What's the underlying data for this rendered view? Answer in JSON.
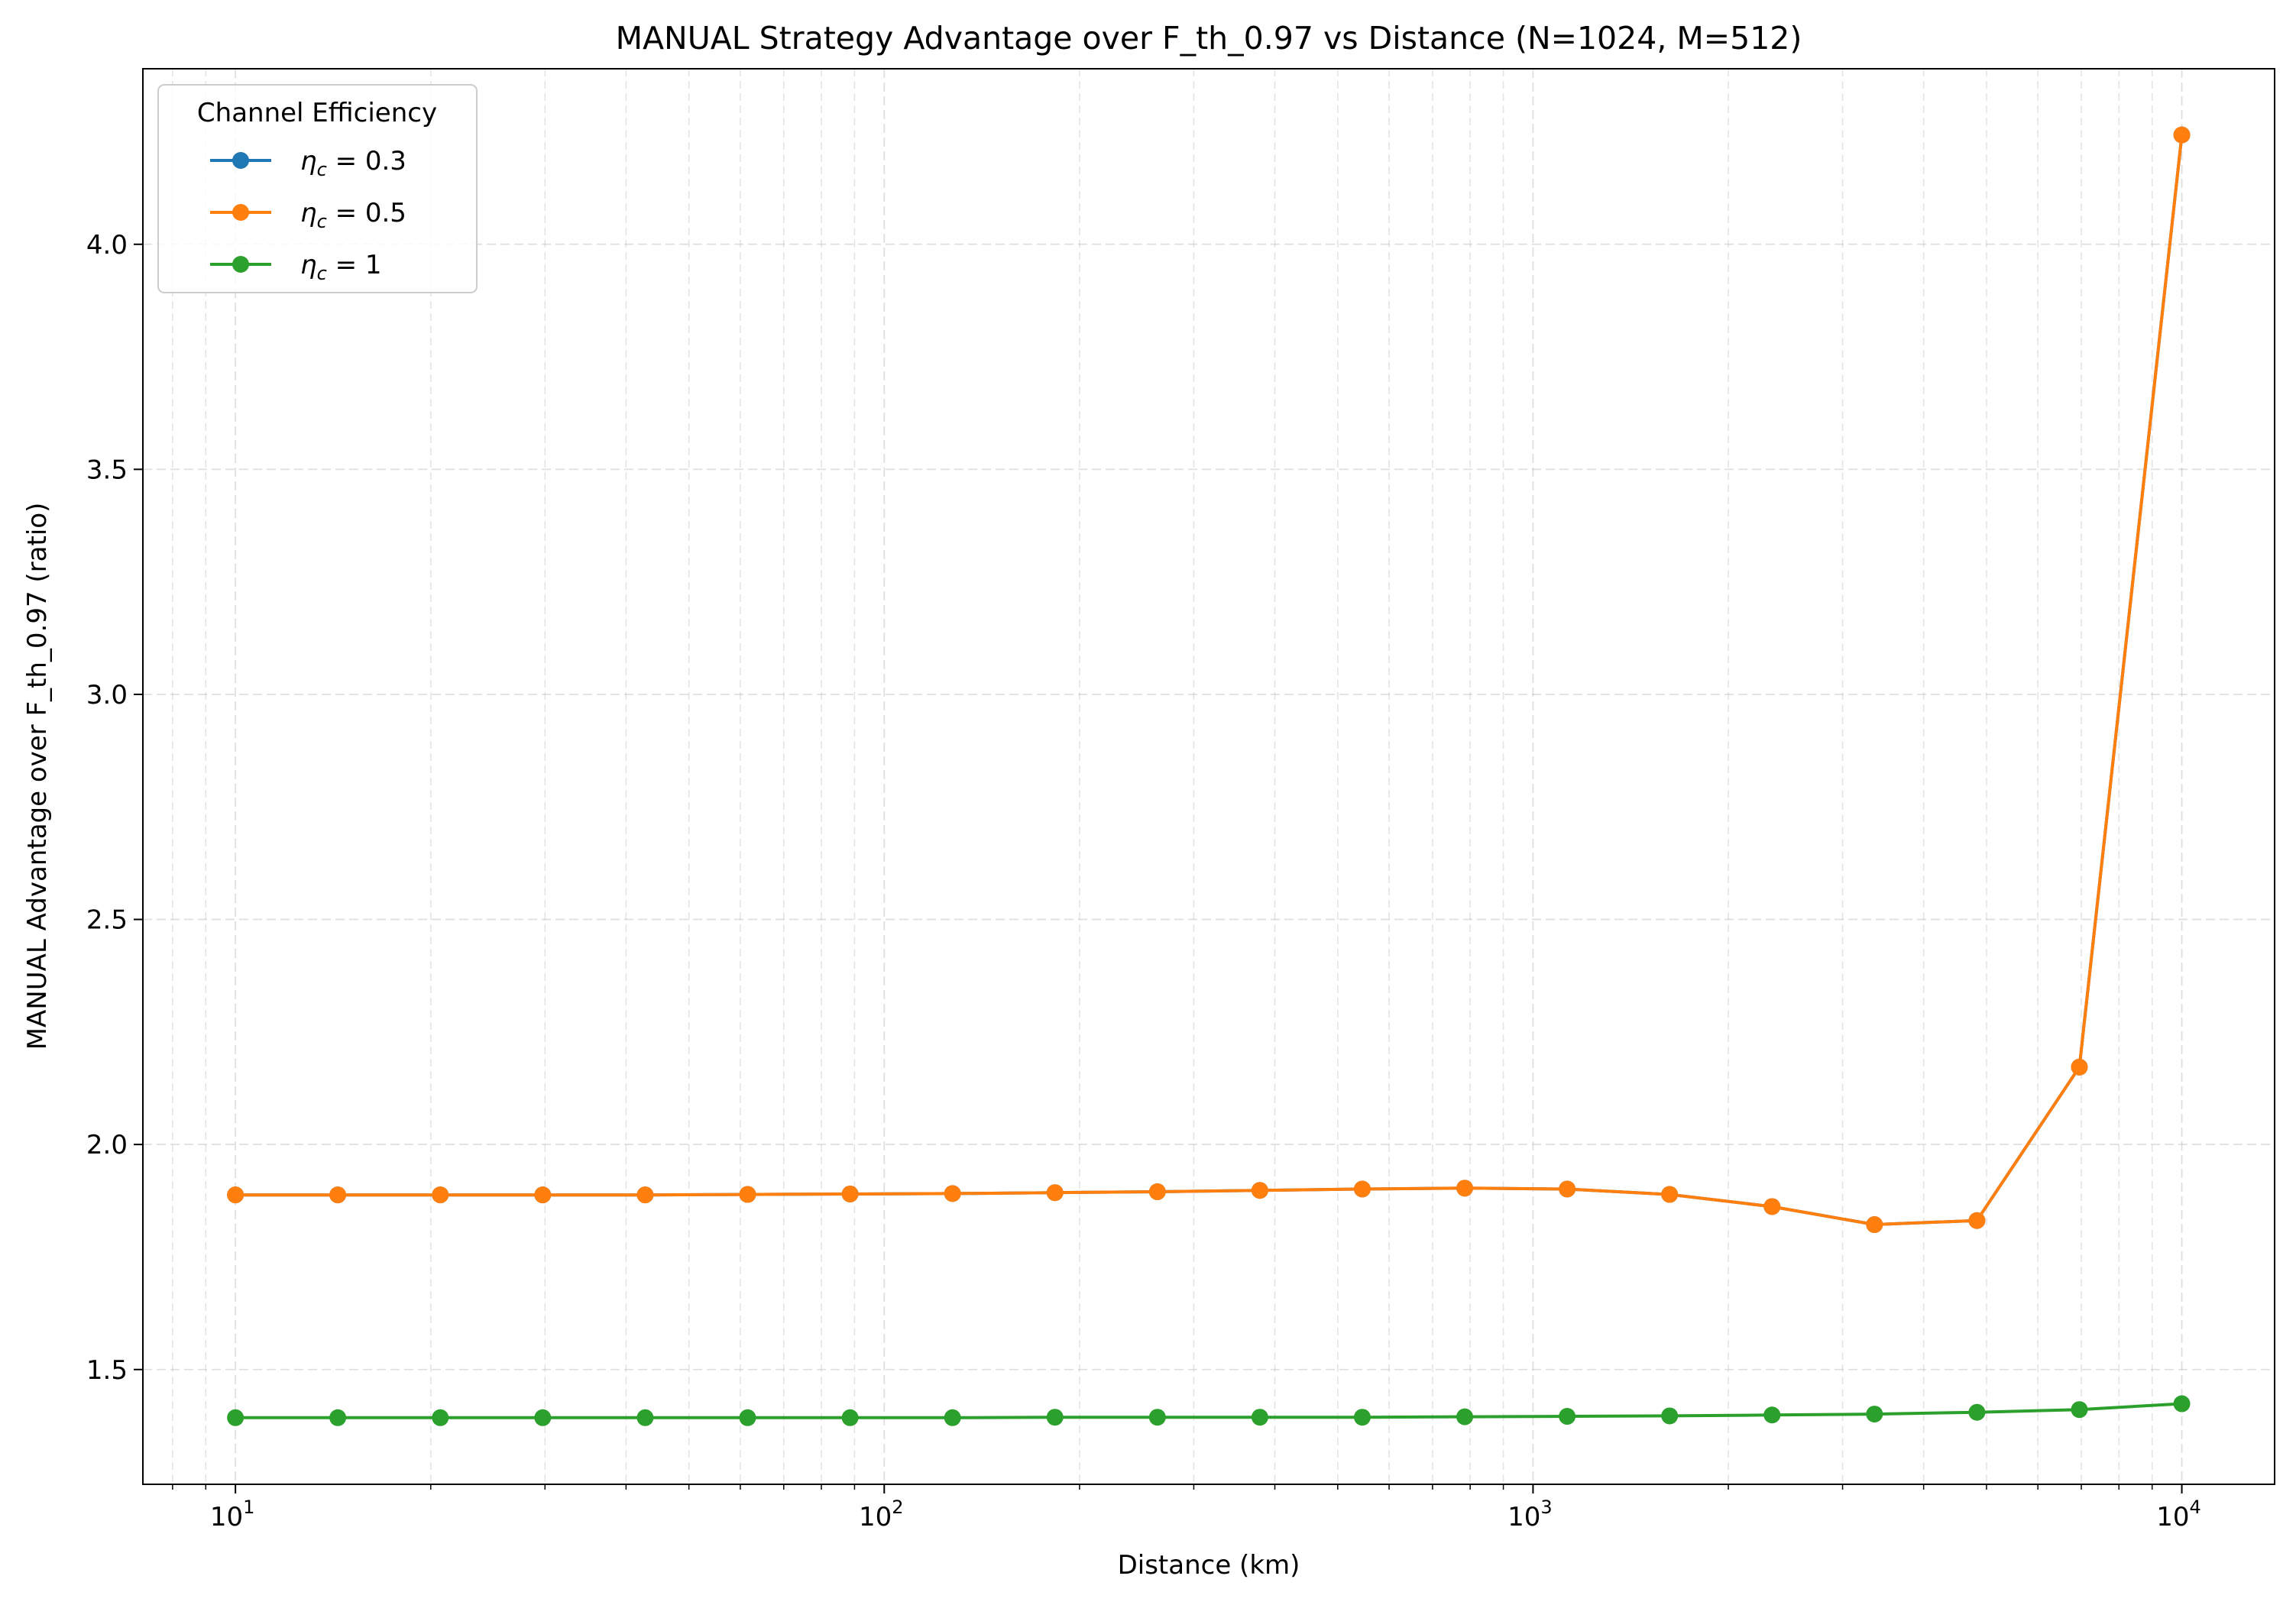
{
  "chart_data": {
    "type": "line",
    "title": "MANUAL Strategy Advantage over F_th_0.97 vs Distance (N=1024, M=512)",
    "xlabel": "Distance (km)",
    "ylabel": "MANUAL Advantage over F_th_0.97 (ratio)",
    "x_scale": "log",
    "xlim": [
      7.2,
      13900
    ],
    "ylim": [
      1.245,
      4.39
    ],
    "x_ticks": [
      {
        "value": 10,
        "base": "10",
        "exp": "1"
      },
      {
        "value": 100,
        "base": "10",
        "exp": "2"
      },
      {
        "value": 1000,
        "base": "10",
        "exp": "3"
      },
      {
        "value": 10000,
        "base": "10",
        "exp": "4"
      }
    ],
    "y_ticks": [
      {
        "value": 1.5,
        "label": "1.5"
      },
      {
        "value": 2.0,
        "label": "2.0"
      },
      {
        "value": 2.5,
        "label": "2.5"
      },
      {
        "value": 3.0,
        "label": "3.0"
      },
      {
        "value": 3.5,
        "label": "3.5"
      },
      {
        "value": 4.0,
        "label": "4.0"
      }
    ],
    "grid": true,
    "legend_title": "Channel Efficiency",
    "legend_position": "top-left",
    "x": [
      10,
      14.38,
      20.69,
      29.76,
      42.81,
      61.58,
      88.59,
      127.43,
      183.3,
      263.67,
      379.27,
      545.56,
      784.76,
      1128.84,
      1623.78,
      2335.72,
      3359.82,
      4832.93,
      6951.93,
      10000
    ],
    "series": [
      {
        "name_main": "η",
        "name_sub": "c",
        "name_rest": " = 0.3",
        "color": "#1f77b4",
        "values": [
          1.888,
          1.888,
          1.888,
          1.888,
          1.888,
          1.889,
          1.89,
          1.891,
          1.893,
          1.895,
          1.898,
          1.901,
          1.903,
          1.901,
          1.889,
          1.862,
          1.822,
          1.831,
          2.172,
          4.243
        ]
      },
      {
        "name_main": "η",
        "name_sub": "c",
        "name_rest": " = 0.5",
        "color": "#ff7f0e",
        "values": [
          1.888,
          1.888,
          1.888,
          1.888,
          1.888,
          1.889,
          1.89,
          1.891,
          1.893,
          1.895,
          1.898,
          1.901,
          1.903,
          1.901,
          1.889,
          1.862,
          1.822,
          1.831,
          2.172,
          4.243
        ]
      },
      {
        "name_main": "η",
        "name_sub": "c",
        "name_rest": " = 1",
        "color": "#2ca02c",
        "values": [
          1.393,
          1.393,
          1.393,
          1.393,
          1.393,
          1.393,
          1.393,
          1.393,
          1.394,
          1.394,
          1.394,
          1.394,
          1.395,
          1.396,
          1.397,
          1.399,
          1.401,
          1.405,
          1.411,
          1.424
        ]
      }
    ]
  }
}
